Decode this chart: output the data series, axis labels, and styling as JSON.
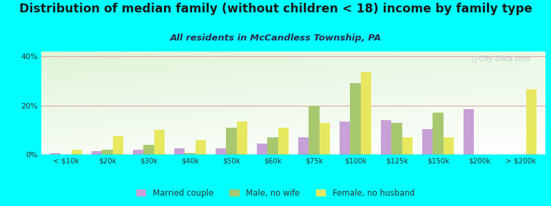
{
  "title": "Distribution of median family (without children < 18) income by family type",
  "subtitle": "All residents in McCandless Township, PA",
  "categories": [
    "< $10k",
    "$20k",
    "$30k",
    "$40k",
    "$50k",
    "$60k",
    "$75k",
    "$100k",
    "$125k",
    "$150k",
    "$200k",
    "> $200k"
  ],
  "married_couple": [
    0.5,
    1.5,
    2.0,
    2.5,
    2.5,
    4.5,
    7.0,
    13.5,
    14.0,
    10.5,
    18.5,
    0.0
  ],
  "male_no_wife": [
    0.0,
    2.0,
    4.0,
    0.5,
    11.0,
    7.0,
    20.0,
    29.0,
    13.0,
    17.0,
    0.0,
    0.0
  ],
  "female_no_husband": [
    2.0,
    7.5,
    10.0,
    6.0,
    13.5,
    11.0,
    13.0,
    33.5,
    7.0,
    7.0,
    0.0,
    26.5
  ],
  "bar_colors": [
    "#c8a0d8",
    "#a8c870",
    "#e8e860"
  ],
  "legend_labels": [
    "Married couple",
    "Male, no wife",
    "Female, no husband"
  ],
  "ylim": [
    0,
    42
  ],
  "yticks": [
    0,
    20,
    40
  ],
  "ytick_labels": [
    "0%",
    "20%",
    "40%"
  ],
  "background_color": "#00ffff",
  "title_color": "#1a1a1a",
  "subtitle_color": "#2a2a4a",
  "title_fontsize": 12.5,
  "subtitle_fontsize": 9.5,
  "watermark": "ⓘ City-Data.com"
}
